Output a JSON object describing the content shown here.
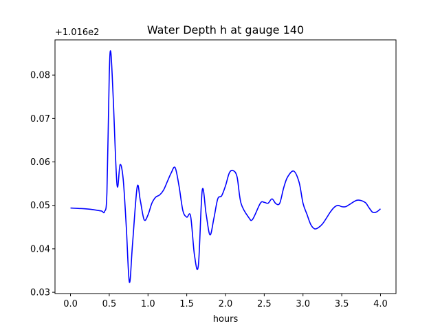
{
  "chart_data": {
    "type": "line",
    "title": "Water Depth h at gauge 140",
    "xlabel": "hours",
    "ylabel": "",
    "offset_label": "+1.016e2",
    "xlim": [
      -0.2,
      4.2
    ],
    "ylim": [
      0.0297,
      0.0881
    ],
    "x_ticks": [
      0.0,
      0.5,
      1.0,
      1.5,
      2.0,
      2.5,
      3.0,
      3.5,
      4.0
    ],
    "x_tick_labels": [
      "0.0",
      "0.5",
      "1.0",
      "1.5",
      "2.0",
      "2.5",
      "3.0",
      "3.5",
      "4.0"
    ],
    "y_ticks": [
      0.03,
      0.04,
      0.05,
      0.06,
      0.07,
      0.08
    ],
    "y_tick_labels": [
      "0.03",
      "0.04",
      "0.05",
      "0.06",
      "0.07",
      "0.08"
    ],
    "grid": false,
    "line_color": "#0000ff",
    "series": [
      {
        "x": [
          0.0,
          0.1,
          0.2,
          0.3,
          0.4,
          0.44,
          0.47,
          0.5,
          0.52,
          0.55,
          0.6,
          0.64,
          0.68,
          0.72,
          0.76,
          0.8,
          0.86,
          0.9,
          0.95,
          1.0,
          1.05,
          1.1,
          1.15,
          1.2,
          1.25,
          1.3,
          1.35,
          1.4,
          1.45,
          1.5,
          1.55,
          1.6,
          1.65,
          1.7,
          1.75,
          1.8,
          1.85,
          1.9,
          1.95,
          2.0,
          2.05,
          2.1,
          2.15,
          2.2,
          2.3,
          2.35,
          2.45,
          2.5,
          2.55,
          2.6,
          2.65,
          2.7,
          2.75,
          2.8,
          2.88,
          2.95,
          3.0,
          3.05,
          3.1,
          3.15,
          3.2,
          3.25,
          3.3,
          3.35,
          3.4,
          3.45,
          3.5,
          3.55,
          3.6,
          3.7,
          3.8,
          3.85,
          3.9,
          3.95,
          4.0
        ],
        "y": [
          0.0494,
          0.0493,
          0.0492,
          0.049,
          0.0487,
          0.0486,
          0.053,
          0.08,
          0.0853,
          0.0752,
          0.0548,
          0.0594,
          0.056,
          0.045,
          0.0323,
          0.041,
          0.0542,
          0.0512,
          0.0467,
          0.0478,
          0.0505,
          0.0519,
          0.0524,
          0.0535,
          0.0555,
          0.0575,
          0.0587,
          0.0545,
          0.0488,
          0.0473,
          0.0475,
          0.0385,
          0.0362,
          0.0535,
          0.048,
          0.0432,
          0.047,
          0.0515,
          0.0522,
          0.0545,
          0.0575,
          0.058,
          0.0565,
          0.0505,
          0.0472,
          0.0468,
          0.0505,
          0.0507,
          0.0505,
          0.0515,
          0.0504,
          0.0505,
          0.054,
          0.0565,
          0.0579,
          0.0553,
          0.0505,
          0.048,
          0.0456,
          0.0446,
          0.0449,
          0.0457,
          0.047,
          0.0484,
          0.0495,
          0.05,
          0.0497,
          0.0497,
          0.0502,
          0.0512,
          0.0507,
          0.0495,
          0.0484,
          0.0485,
          0.0492
        ]
      }
    ]
  }
}
